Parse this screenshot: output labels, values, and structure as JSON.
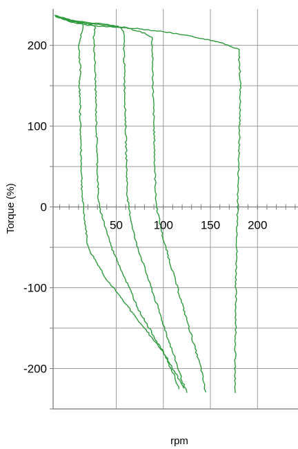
{
  "chart_data": {
    "type": "line",
    "title": "",
    "xlabel": "rpm",
    "ylabel": "Torque (%)",
    "xlim": [
      -17,
      243
    ],
    "ylim": [
      -250,
      245
    ],
    "x_ticks": [
      50,
      100,
      150,
      200
    ],
    "x_tick_labels": [
      "50",
      "100",
      "150",
      "200"
    ],
    "y_ticks": [
      200,
      100,
      0,
      -100,
      -200
    ],
    "y_tick_labels": [
      "200",
      "100",
      "0",
      "-100",
      "-200"
    ],
    "grid": true,
    "legend": "none",
    "series_color": "#2d9a3c",
    "series": [
      {
        "x": [
          -15,
          -10,
          -5,
          0,
          5,
          10,
          15,
          20,
          40,
          70,
          100,
          130,
          160,
          180,
          182,
          181,
          179,
          178,
          177,
          177,
          176,
          176
        ],
        "y": [
          237,
          235,
          232,
          229,
          228,
          227,
          226,
          225,
          223,
          221,
          217,
          211,
          204,
          195,
          150,
          100,
          0,
          -50,
          -100,
          -150,
          -200,
          -230
        ]
      },
      {
        "x": [
          -15,
          0,
          20,
          40,
          60,
          80,
          88,
          89,
          90,
          91,
          92,
          93,
          100,
          110,
          120,
          130,
          140,
          145
        ],
        "y": [
          236,
          230,
          227,
          225,
          222,
          215,
          210,
          150,
          100,
          50,
          10,
          0,
          -40,
          -80,
          -120,
          -160,
          -200,
          -230
        ]
      },
      {
        "x": [
          -15,
          0,
          20,
          40,
          55,
          58,
          59,
          60,
          61,
          62,
          63,
          70,
          80,
          90,
          100,
          110,
          120,
          125
        ],
        "y": [
          237,
          232,
          228,
          226,
          222,
          215,
          150,
          100,
          50,
          10,
          0,
          -40,
          -75,
          -110,
          -145,
          -180,
          -215,
          -230
        ]
      },
      {
        "x": [
          -15,
          0,
          15,
          28,
          26,
          27,
          28,
          29,
          30,
          31,
          32,
          45,
          60,
          75,
          90,
          105,
          115,
          122
        ],
        "y": [
          236,
          232,
          228,
          224,
          210,
          190,
          150,
          100,
          50,
          10,
          0,
          -50,
          -90,
          -130,
          -160,
          -190,
          -210,
          -225
        ]
      },
      {
        "x": [
          -15,
          -5,
          5,
          15,
          10,
          12,
          11,
          12,
          13,
          14,
          15,
          20,
          40,
          60,
          80,
          100,
          110,
          117
        ],
        "y": [
          236,
          232,
          230,
          226,
          200,
          170,
          150,
          100,
          50,
          10,
          0,
          -50,
          -90,
          -120,
          -150,
          -180,
          -205,
          -225
        ]
      }
    ]
  }
}
